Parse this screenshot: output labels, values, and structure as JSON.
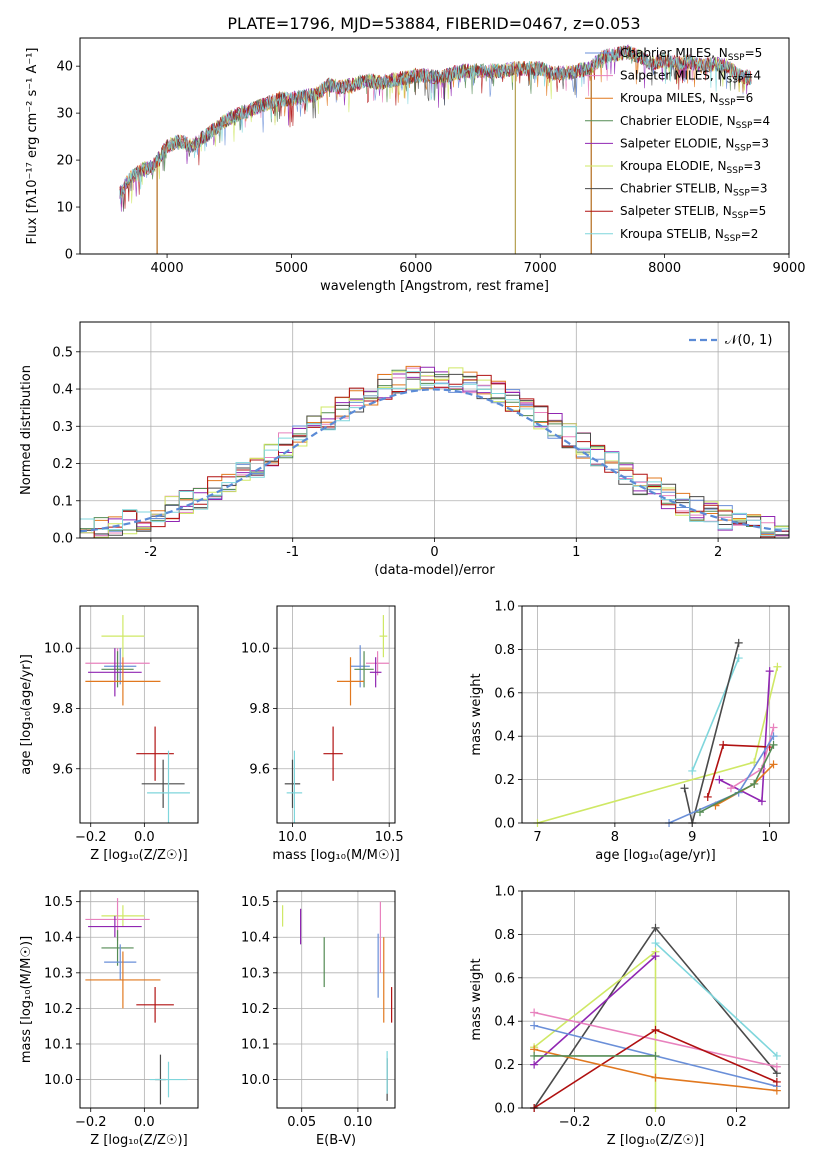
{
  "title": "PLATE=1796, MJD=53884, FIBERID=0467, z=0.053",
  "colors": {
    "Chabrier MILES": "#6a8fd8",
    "Salpeter MILES": "#e882be",
    "Kroupa MILES": "#e1781f",
    "Chabrier ELODIE": "#548b54",
    "Salpeter ELODIE": "#9026b2",
    "Kroupa ELODIE": "#cfe865",
    "Chabrier STELIB": "#4a4a4a",
    "Salpeter STELIB": "#b01010",
    "Kroupa STELIB": "#7fd6dc"
  },
  "chart_data": [
    {
      "id": "spectrum",
      "type": "line",
      "xlabel": "wavelength [Angstrom, rest frame]",
      "ylabel": "Flux [fλ10⁻¹⁷ erg cm⁻² s⁻¹ A⁻¹]",
      "xlim": [
        3300,
        9000
      ],
      "ylim": [
        0,
        46
      ],
      "xticks": [
        4000,
        5000,
        6000,
        7000,
        8000,
        9000
      ],
      "yticks": [
        0,
        10,
        20,
        30,
        40
      ],
      "legend_position": "top-right",
      "legend": [
        {
          "model": "Chabrier MILES",
          "label": "Chabrier MILES, N",
          "sub": "SSP",
          "suffix": "=5"
        },
        {
          "model": "Salpeter MILES",
          "label": "Salpeter MILES, N",
          "sub": "SSP",
          "suffix": "=4"
        },
        {
          "model": "Kroupa MILES",
          "label": "Kroupa MILES, N",
          "sub": "SSP",
          "suffix": "=6"
        },
        {
          "model": "Chabrier ELODIE",
          "label": "Chabrier ELODIE, N",
          "sub": "SSP",
          "suffix": "=4"
        },
        {
          "model": "Salpeter ELODIE",
          "label": "Salpeter ELODIE, N",
          "sub": "SSP",
          "suffix": "=3"
        },
        {
          "model": "Kroupa ELODIE",
          "label": "Kroupa ELODIE, N",
          "sub": "SSP",
          "suffix": "=3"
        },
        {
          "model": "Chabrier STELIB",
          "label": "Chabrier STELIB, N",
          "sub": "SSP",
          "suffix": "=3"
        },
        {
          "model": "Salpeter STELIB",
          "label": "Salpeter STELIB, N",
          "sub": "SSP",
          "suffix": "=5"
        },
        {
          "model": "Kroupa STELIB",
          "label": "Kroupa STELIB, N",
          "sub": "SSP",
          "suffix": "=2"
        }
      ],
      "envelope": [
        [
          3620,
          13
        ],
        [
          3700,
          16
        ],
        [
          3800,
          18
        ],
        [
          3900,
          19
        ],
        [
          4000,
          23
        ],
        [
          4100,
          24
        ],
        [
          4200,
          23
        ],
        [
          4300,
          25
        ],
        [
          4400,
          27
        ],
        [
          4500,
          29
        ],
        [
          4600,
          30
        ],
        [
          4700,
          31
        ],
        [
          4800,
          32
        ],
        [
          4900,
          33
        ],
        [
          5000,
          33
        ],
        [
          5100,
          33.5
        ],
        [
          5200,
          34
        ],
        [
          5300,
          36
        ],
        [
          5400,
          35.5
        ],
        [
          5500,
          36
        ],
        [
          5600,
          37
        ],
        [
          5700,
          36.5
        ],
        [
          5800,
          37
        ],
        [
          5900,
          37.5
        ],
        [
          6000,
          38
        ],
        [
          6100,
          38
        ],
        [
          6200,
          37.5
        ],
        [
          6300,
          38.5
        ],
        [
          6400,
          39
        ],
        [
          6500,
          39
        ],
        [
          6600,
          39
        ],
        [
          6700,
          39
        ],
        [
          6800,
          39.5
        ],
        [
          6900,
          39.5
        ],
        [
          7000,
          39.5
        ],
        [
          7100,
          38.5
        ],
        [
          7200,
          38.5
        ],
        [
          7300,
          39
        ],
        [
          7400,
          39.5
        ],
        [
          7500,
          42
        ],
        [
          7600,
          42.5
        ],
        [
          7700,
          43
        ],
        [
          7800,
          42
        ],
        [
          7900,
          40.5
        ],
        [
          8000,
          41.5
        ],
        [
          8100,
          40.5
        ],
        [
          8200,
          41
        ],
        [
          8300,
          40
        ],
        [
          8400,
          40.5
        ],
        [
          8500,
          40
        ],
        [
          8600,
          38
        ],
        [
          8700,
          37.5
        ]
      ],
      "dropouts": [
        3920,
        6800,
        7410
      ]
    },
    {
      "id": "residuals",
      "type": "histogram",
      "xlabel": "(data-model)/error",
      "ylabel": "Normed distribution",
      "xlim": [
        -2.5,
        2.5
      ],
      "ylim": [
        0,
        0.58
      ],
      "xticks": [
        -2,
        -1,
        0,
        1,
        2
      ],
      "yticks": [
        0.0,
        0.1,
        0.2,
        0.3,
        0.4,
        0.5
      ],
      "bin_width": 0.1,
      "grid": true,
      "legend_position": "top-right",
      "reference_label": "𝒩(0, 1)",
      "reference": "normal(0,1)"
    },
    {
      "id": "age-vs-Z",
      "type": "scatter",
      "xlabel": "Z [log₁₀(Z/Z☉)]",
      "ylabel": "age  [log₁₀(age/yr)]",
      "xlim": [
        -0.24,
        0.2
      ],
      "ylim": [
        9.42,
        10.14
      ],
      "xticks": [
        -0.2,
        0.0
      ],
      "xtick_labels": [
        "−0.2",
        "0.0"
      ],
      "yticks": [
        9.6,
        9.8,
        10.0
      ],
      "grid": true,
      "points": [
        {
          "model": "Kroupa ELODIE",
          "x": -0.08,
          "y": 10.04,
          "xerr": 0.08,
          "yerr": 0.07
        },
        {
          "model": "Salpeter MILES",
          "x": -0.1,
          "y": 9.95,
          "xerr": 0.12,
          "yerr": 0.05
        },
        {
          "model": "Chabrier MILES",
          "x": -0.09,
          "y": 9.94,
          "xerr": 0.06,
          "yerr": 0.06
        },
        {
          "model": "Chabrier ELODIE",
          "x": -0.1,
          "y": 9.93,
          "xerr": 0.06,
          "yerr": 0.06
        },
        {
          "model": "Salpeter ELODIE",
          "x": -0.11,
          "y": 9.92,
          "xerr": 0.1,
          "yerr": 0.08
        },
        {
          "model": "Kroupa MILES",
          "x": -0.08,
          "y": 9.89,
          "xerr": 0.14,
          "yerr": 0.08
        },
        {
          "model": "Salpeter STELIB",
          "x": 0.04,
          "y": 9.65,
          "xerr": 0.07,
          "yerr": 0.09
        },
        {
          "model": "Chabrier STELIB",
          "x": 0.07,
          "y": 9.55,
          "xerr": 0.08,
          "yerr": 0.08
        },
        {
          "model": "Kroupa STELIB",
          "x": 0.09,
          "y": 9.52,
          "xerr": 0.08,
          "yerr": 0.14
        }
      ]
    },
    {
      "id": "age-vs-mass",
      "type": "scatter",
      "xlabel": "mass [log₁₀(M/M☉)]",
      "ylabel": "",
      "xlim": [
        9.92,
        10.53
      ],
      "ylim": [
        9.42,
        10.14
      ],
      "xticks": [
        10.0,
        10.5
      ],
      "xtick_labels": [
        "10.0",
        "10.5"
      ],
      "yticks": [
        9.6,
        9.8,
        10.0
      ],
      "grid": true,
      "points": [
        {
          "model": "Kroupa ELODIE",
          "x": 10.47,
          "y": 10.04,
          "xerr": 0.02,
          "yerr": 0.07
        },
        {
          "model": "Salpeter MILES",
          "x": 10.44,
          "y": 9.95,
          "xerr": 0.06,
          "yerr": 0.04
        },
        {
          "model": "Chabrier MILES",
          "x": 10.35,
          "y": 9.94,
          "xerr": 0.05,
          "yerr": 0.07
        },
        {
          "model": "Chabrier ELODIE",
          "x": 10.37,
          "y": 9.93,
          "xerr": 0.05,
          "yerr": 0.06
        },
        {
          "model": "Salpeter ELODIE",
          "x": 10.43,
          "y": 9.92,
          "xerr": 0.03,
          "yerr": 0.05
        },
        {
          "model": "Kroupa MILES",
          "x": 10.3,
          "y": 9.89,
          "xerr": 0.07,
          "yerr": 0.08
        },
        {
          "model": "Salpeter STELIB",
          "x": 10.21,
          "y": 9.65,
          "xerr": 0.05,
          "yerr": 0.09
        },
        {
          "model": "Chabrier STELIB",
          "x": 10.0,
          "y": 9.55,
          "xerr": 0.04,
          "yerr": 0.08
        },
        {
          "model": "Kroupa STELIB",
          "x": 10.01,
          "y": 9.52,
          "xerr": 0.04,
          "yerr": 0.14
        }
      ]
    },
    {
      "id": "mass-weight-vs-age",
      "type": "line",
      "xlabel": "age  [log₁₀(age/yr)]",
      "ylabel": "mass weight",
      "xlim": [
        6.8,
        10.25
      ],
      "ylim": [
        0,
        1.0
      ],
      "xticks": [
        7,
        8,
        9,
        10
      ],
      "yticks": [
        0.0,
        0.2,
        0.4,
        0.6,
        0.8,
        1.0
      ],
      "grid": true,
      "series": [
        {
          "model": "Kroupa ELODIE",
          "x": [
            7.0,
            9.8,
            10.1
          ],
          "y": [
            0.0,
            0.28,
            0.72
          ]
        },
        {
          "model": "Kroupa STELIB",
          "x": [
            9.0,
            9.6
          ],
          "y": [
            0.24,
            0.76
          ]
        },
        {
          "model": "Chabrier STELIB",
          "x": [
            8.9,
            9.0,
            9.6
          ],
          "y": [
            0.16,
            0.0,
            0.83
          ]
        },
        {
          "model": "Salpeter ELODIE",
          "x": [
            9.35,
            9.9,
            10.0
          ],
          "y": [
            0.2,
            0.1,
            0.7
          ]
        },
        {
          "model": "Salpeter STELIB",
          "x": [
            9.2,
            9.4,
            10.0
          ],
          "y": [
            0.12,
            0.36,
            0.35
          ]
        },
        {
          "model": "Salpeter MILES",
          "x": [
            9.5,
            9.9,
            10.05
          ],
          "y": [
            0.16,
            0.25,
            0.44
          ]
        },
        {
          "model": "Kroupa MILES",
          "x": [
            9.3,
            9.8,
            10.05
          ],
          "y": [
            0.08,
            0.18,
            0.27
          ]
        },
        {
          "model": "Chabrier MILES",
          "x": [
            8.7,
            9.6,
            10.05
          ],
          "y": [
            0.0,
            0.14,
            0.4
          ]
        },
        {
          "model": "Chabrier ELODIE",
          "x": [
            9.1,
            9.8,
            10.05
          ],
          "y": [
            0.05,
            0.18,
            0.36
          ]
        }
      ]
    },
    {
      "id": "mass-vs-Z",
      "type": "scatter",
      "xlabel": "Z [log₁₀(Z/Z☉)]",
      "ylabel": "mass [log₁₀(M/M☉)]",
      "xlim": [
        -0.24,
        0.2
      ],
      "ylim": [
        9.92,
        10.53
      ],
      "xticks": [
        -0.2,
        0.0
      ],
      "xtick_labels": [
        "−0.2",
        "0.0"
      ],
      "yticks": [
        10.0,
        10.1,
        10.2,
        10.3,
        10.4,
        10.5
      ],
      "grid": true,
      "points": [
        {
          "model": "Kroupa ELODIE",
          "x": -0.08,
          "y": 10.46,
          "xerr": 0.08,
          "yerr": 0.03
        },
        {
          "model": "Salpeter MILES",
          "x": -0.1,
          "y": 10.45,
          "xerr": 0.12,
          "yerr": 0.06
        },
        {
          "model": "Salpeter ELODIE",
          "x": -0.11,
          "y": 10.43,
          "xerr": 0.1,
          "yerr": 0.03
        },
        {
          "model": "Chabrier ELODIE",
          "x": -0.1,
          "y": 10.37,
          "xerr": 0.06,
          "yerr": 0.05
        },
        {
          "model": "Chabrier MILES",
          "x": -0.09,
          "y": 10.33,
          "xerr": 0.06,
          "yerr": 0.05
        },
        {
          "model": "Kroupa MILES",
          "x": -0.08,
          "y": 10.28,
          "xerr": 0.14,
          "yerr": 0.08
        },
        {
          "model": "Salpeter STELIB",
          "x": 0.04,
          "y": 10.21,
          "xerr": 0.07,
          "yerr": 0.05
        },
        {
          "model": "Chabrier STELIB",
          "x": 0.06,
          "y": 10.0,
          "xerr": 0.02,
          "yerr": 0.07
        },
        {
          "model": "Kroupa STELIB",
          "x": 0.09,
          "y": 10.0,
          "xerr": 0.07,
          "yerr": 0.05
        }
      ]
    },
    {
      "id": "mass-vs-ebv",
      "type": "scatter",
      "xlabel": "E(B-V)",
      "ylabel": "",
      "xlim": [
        0.028,
        0.133
      ],
      "ylim": [
        9.92,
        10.53
      ],
      "xticks": [
        0.05,
        0.1
      ],
      "xtick_labels": [
        "0.05",
        "0.10"
      ],
      "yticks": [
        10.0,
        10.1,
        10.2,
        10.3,
        10.4,
        10.5
      ],
      "grid": true,
      "points": [
        {
          "model": "Kroupa ELODIE",
          "x": 0.033,
          "y": 10.46,
          "xerr": 0,
          "yerr": 0.03
        },
        {
          "model": "Salpeter ELODIE",
          "x": 0.049,
          "y": 10.43,
          "xerr": 0,
          "yerr": 0.05
        },
        {
          "model": "Chabrier ELODIE",
          "x": 0.07,
          "y": 10.33,
          "xerr": 0,
          "yerr": 0.07
        },
        {
          "model": "Salpeter MILES",
          "x": 0.12,
          "y": 10.4,
          "xerr": 0,
          "yerr": 0.1
        },
        {
          "model": "Chabrier MILES",
          "x": 0.118,
          "y": 10.32,
          "xerr": 0,
          "yerr": 0.09
        },
        {
          "model": "Kroupa MILES",
          "x": 0.123,
          "y": 10.28,
          "xerr": 0,
          "yerr": 0.12
        },
        {
          "model": "Salpeter STELIB",
          "x": 0.13,
          "y": 10.21,
          "xerr": 0,
          "yerr": 0.05
        },
        {
          "model": "Chabrier STELIB",
          "x": 0.126,
          "y": 10.0,
          "xerr": 0,
          "yerr": 0.06
        },
        {
          "model": "Kroupa STELIB",
          "x": 0.126,
          "y": 10.02,
          "xerr": 0,
          "yerr": 0.06
        }
      ]
    },
    {
      "id": "mass-weight-vs-Z",
      "type": "line",
      "xlabel": "Z [log₁₀(Z/Z☉)]",
      "ylabel": "mass weight",
      "xlim": [
        -0.33,
        0.33
      ],
      "ylim": [
        0,
        1.0
      ],
      "xticks": [
        -0.2,
        0.0,
        0.2
      ],
      "xtick_labels": [
        "−0.2",
        "0.0",
        "0.2"
      ],
      "yticks": [
        0.0,
        0.2,
        0.4,
        0.6,
        0.8,
        1.0
      ],
      "grid": true,
      "series": [
        {
          "model": "Chabrier STELIB",
          "x": [
            -0.3,
            0.0,
            0.3
          ],
          "y": [
            0.0,
            0.83,
            0.16
          ]
        },
        {
          "model": "Kroupa STELIB",
          "x": [
            0.0,
            0.3
          ],
          "y": [
            0.76,
            0.24
          ]
        },
        {
          "model": "Kroupa ELODIE",
          "x": [
            -0.3,
            0.0,
            0.0
          ],
          "y": [
            0.28,
            0.72,
            0.0
          ]
        },
        {
          "model": "Salpeter ELODIE",
          "x": [
            -0.3,
            0.0
          ],
          "y": [
            0.2,
            0.7
          ]
        },
        {
          "model": "Salpeter MILES",
          "x": [
            -0.3,
            0.3
          ],
          "y": [
            0.44,
            0.19
          ]
        },
        {
          "model": "Chabrier MILES",
          "x": [
            -0.3,
            0.3
          ],
          "y": [
            0.38,
            0.1
          ]
        },
        {
          "model": "Salpeter STELIB",
          "x": [
            -0.3,
            0.0,
            0.3
          ],
          "y": [
            0.0,
            0.36,
            0.12
          ]
        },
        {
          "model": "Kroupa MILES",
          "x": [
            -0.3,
            0.0,
            0.3
          ],
          "y": [
            0.27,
            0.14,
            0.08
          ]
        },
        {
          "model": "Chabrier ELODIE",
          "x": [
            -0.3,
            0.0
          ],
          "y": [
            0.24,
            0.24
          ]
        }
      ]
    }
  ]
}
